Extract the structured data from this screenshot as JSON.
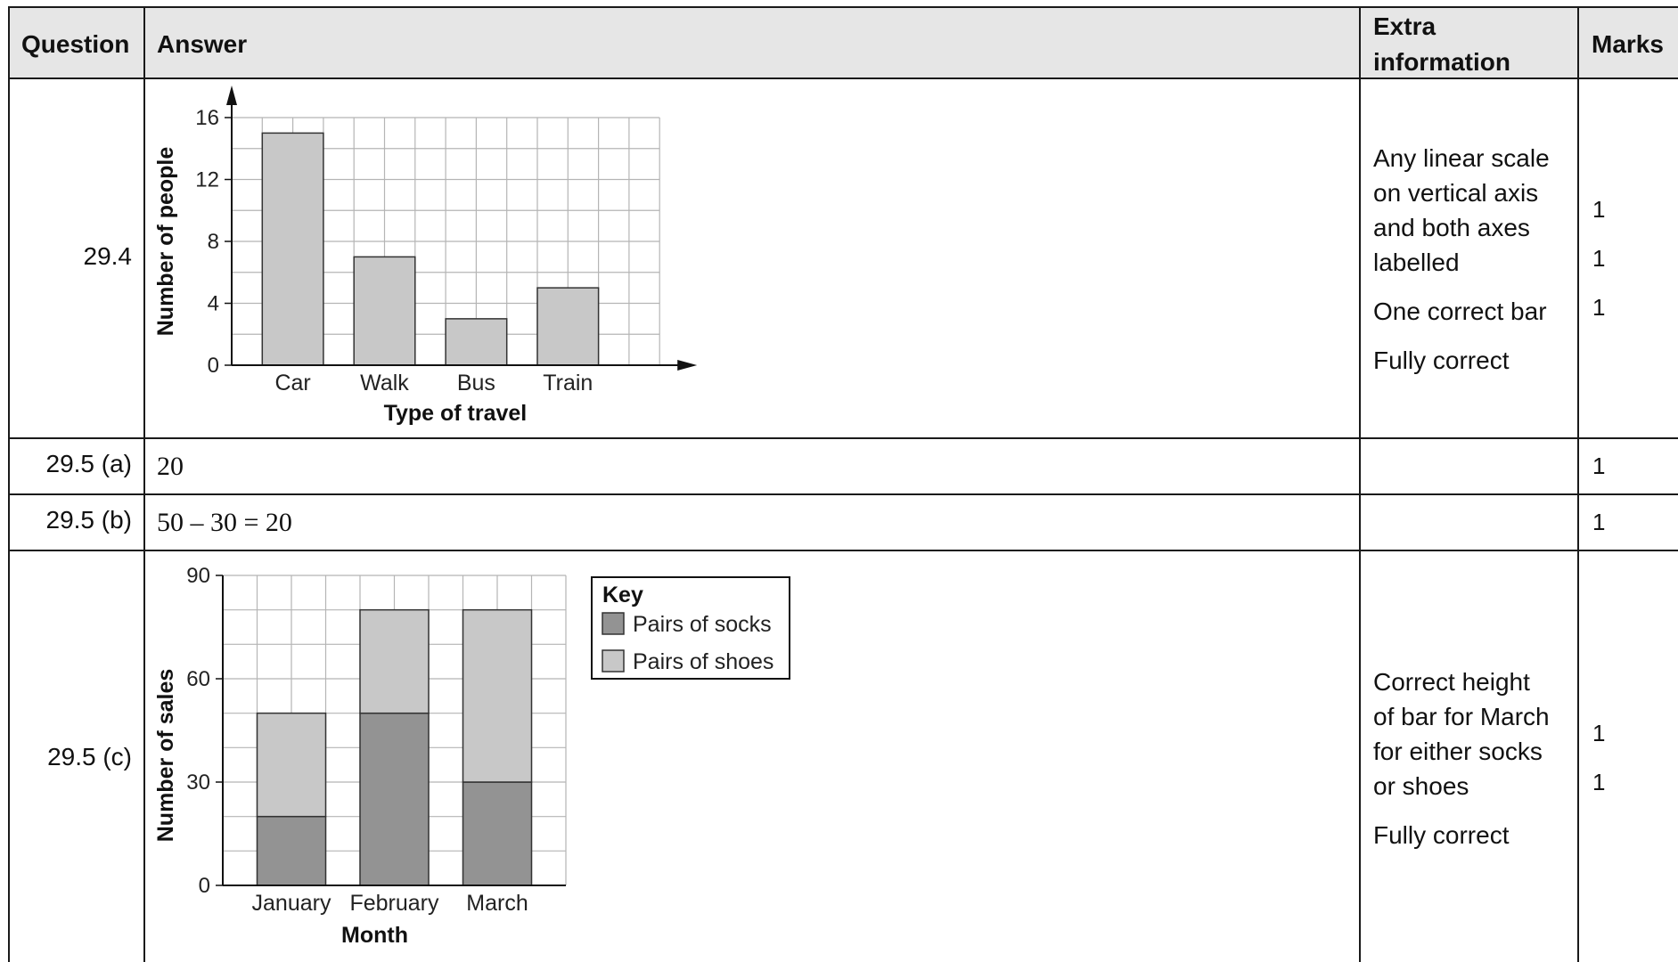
{
  "header": {
    "question": "Question",
    "answer": "Answer",
    "extra_line1": "Extra",
    "extra_line2": "information",
    "marks": "Marks"
  },
  "rows": [
    {
      "question": "29.4",
      "extra": [
        "Any linear scale",
        "on vertical axis",
        "and both axes",
        "labelled",
        "One correct bar",
        "Fully correct"
      ],
      "marks": [
        "1",
        "1",
        "1"
      ]
    },
    {
      "question": "29.5 (a)",
      "answer": "20",
      "marks": [
        "1"
      ]
    },
    {
      "question": "29.5 (b)",
      "answer": "50 – 30 = 20",
      "marks": [
        "1"
      ]
    },
    {
      "question": "29.5 (c)",
      "extra": [
        "Correct height",
        "of bar for March",
        "for either socks",
        "or shoes",
        "Fully correct"
      ],
      "marks": [
        "1",
        "1"
      ]
    }
  ],
  "chart_data": [
    {
      "type": "bar",
      "categories": [
        "Car",
        "Walk",
        "Bus",
        "Train"
      ],
      "values": [
        15,
        7,
        3,
        5
      ],
      "xlabel": "Type of travel",
      "ylabel": "Number of people",
      "yticks": [
        0,
        4,
        8,
        12,
        16
      ],
      "ylim": [
        0,
        16
      ],
      "grid": true,
      "bar_color": "#c8c8c8"
    },
    {
      "type": "bar",
      "stacked": true,
      "categories": [
        "January",
        "February",
        "March"
      ],
      "series": [
        {
          "name": "Pairs of socks",
          "values": [
            20,
            50,
            30
          ],
          "color": "#939393"
        },
        {
          "name": "Pairs of shoes",
          "values": [
            30,
            30,
            50
          ],
          "color": "#c8c8c8"
        }
      ],
      "xlabel": "Month",
      "ylabel": "Number of sales",
      "yticks": [
        0,
        30,
        60,
        90
      ],
      "ylim": [
        0,
        90
      ],
      "grid": true,
      "legend_title": "Key",
      "legend_position": "right"
    }
  ]
}
